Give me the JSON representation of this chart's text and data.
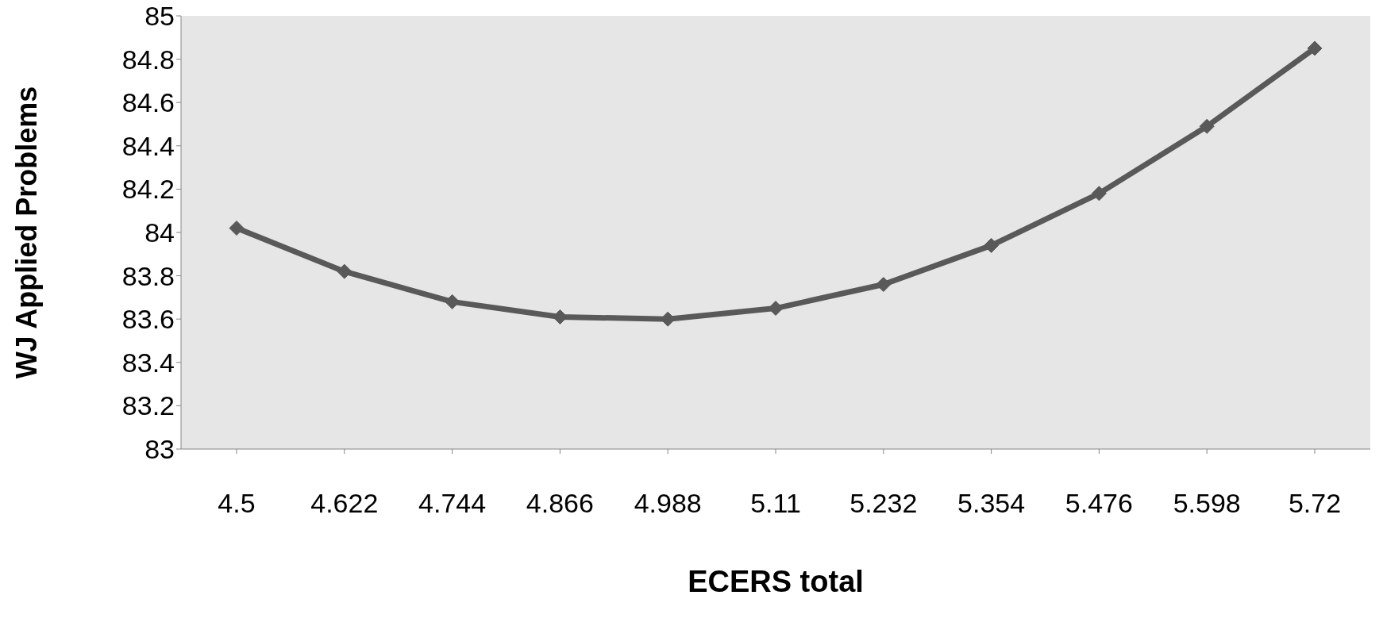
{
  "chart_data": {
    "type": "line",
    "xlabel": "ECERS total",
    "ylabel": "WJ Applied Problems",
    "categories": [
      "4.5",
      "4.622",
      "4.744",
      "4.866",
      "4.988",
      "5.11",
      "5.232",
      "5.354",
      "5.476",
      "5.598",
      "5.72"
    ],
    "series": [
      {
        "color": "#595959",
        "values": [
          84.02,
          83.82,
          83.68,
          83.61,
          83.6,
          83.65,
          83.76,
          83.94,
          84.18,
          84.49,
          84.85
        ]
      }
    ],
    "ylim": [
      83,
      85
    ],
    "yticks": [
      83,
      83.2,
      83.4,
      83.6,
      83.8,
      84,
      84.2,
      84.4,
      84.6,
      84.8,
      85
    ],
    "grid": false,
    "marker": "diamond",
    "line_style": "solid"
  }
}
